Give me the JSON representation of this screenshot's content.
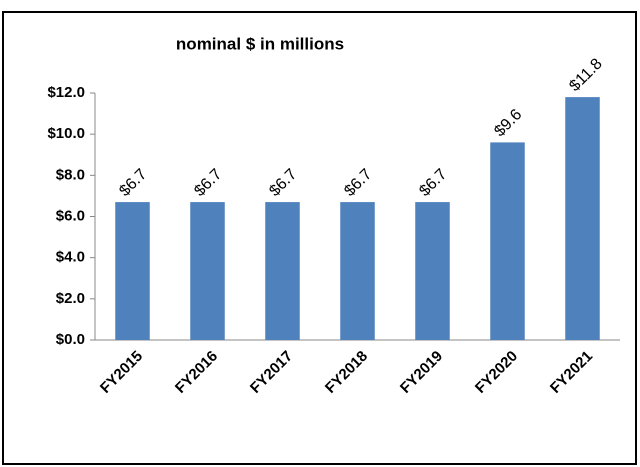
{
  "chart_data": {
    "type": "bar",
    "title": "nominal $ in millions",
    "categories": [
      "FY2015",
      "FY2016",
      "FY2017",
      "FY2018",
      "FY2019",
      "FY2020",
      "FY2021"
    ],
    "values": [
      6.7,
      6.7,
      6.7,
      6.7,
      6.7,
      9.6,
      11.8
    ],
    "value_labels": [
      "$6.7",
      "$6.7",
      "$6.7",
      "$6.7",
      "$6.7",
      "$9.6",
      "$11.8"
    ],
    "color": "#4f81bd",
    "ylim": [
      0,
      12
    ],
    "yticks": [
      {
        "value": 0,
        "label": "$0.0"
      },
      {
        "value": 2,
        "label": "$2.0"
      },
      {
        "value": 4,
        "label": "$4.0"
      },
      {
        "value": 6,
        "label": "$6.0"
      },
      {
        "value": 8,
        "label": "$8.0"
      },
      {
        "value": 10,
        "label": "$10.0"
      },
      {
        "value": 12,
        "label": "$12.0"
      }
    ],
    "grid": false
  }
}
